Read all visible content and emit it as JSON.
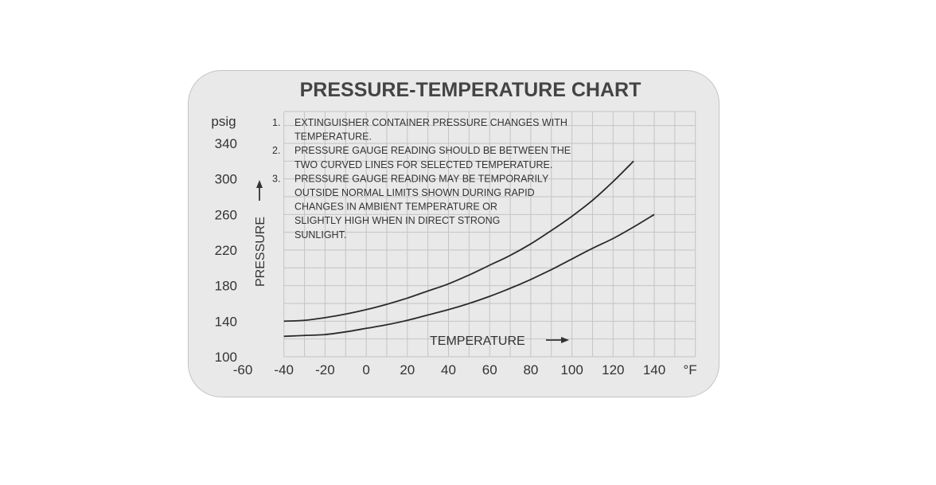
{
  "chart_data": {
    "type": "line",
    "title": "PRESSURE-TEMPERATURE CHART",
    "xlabel": "TEMPERATURE",
    "ylabel": "PRESSURE",
    "x_unit": "°F",
    "y_unit": "psig",
    "xlim": [
      -60,
      140
    ],
    "ylim": [
      100,
      340
    ],
    "x_ticks": [
      -60,
      -40,
      -20,
      0,
      20,
      40,
      60,
      80,
      100,
      120,
      140
    ],
    "y_ticks": [
      100,
      140,
      180,
      220,
      260,
      300,
      340
    ],
    "grid": true,
    "series": [
      {
        "x": [
          -40,
          -30,
          -20,
          -10,
          0,
          10,
          20,
          30,
          40,
          50,
          60,
          70,
          80,
          90,
          100,
          110,
          120,
          130
        ],
        "values": [
          140,
          141,
          144,
          148,
          153,
          159,
          166,
          174,
          182,
          192,
          203,
          214,
          227,
          242,
          258,
          276,
          297,
          320
        ]
      },
      {
        "x": [
          -40,
          -30,
          -20,
          -10,
          0,
          10,
          20,
          30,
          40,
          50,
          60,
          70,
          80,
          90,
          100,
          110,
          120,
          130,
          140
        ],
        "values": [
          123,
          124,
          125,
          128,
          132,
          136,
          141,
          147,
          153,
          160,
          168,
          177,
          187,
          198,
          210,
          222,
          233,
          246,
          260
        ]
      }
    ],
    "notes": [
      {
        "number": "1.",
        "lines": [
          "EXTINGUISHER CONTAINER PRESSURE CHANGES WITH",
          "TEMPERATURE."
        ]
      },
      {
        "number": "2.",
        "lines": [
          "PRESSURE GAUGE READING SHOULD BE BETWEEN THE",
          "TWO CURVED LINES FOR SELECTED TEMPERATURE."
        ]
      },
      {
        "number": "3.",
        "lines": [
          "PRESSURE GAUGE READING MAY BE TEMPORARILY",
          "OUTSIDE NORMAL LIMITS SHOWN DURING RAPID",
          "CHANGES IN AMBIENT TEMPERATURE OR",
          "SLIGHTLY HIGH WHEN IN DIRECT STRONG",
          "SUNLIGHT."
        ]
      }
    ]
  }
}
